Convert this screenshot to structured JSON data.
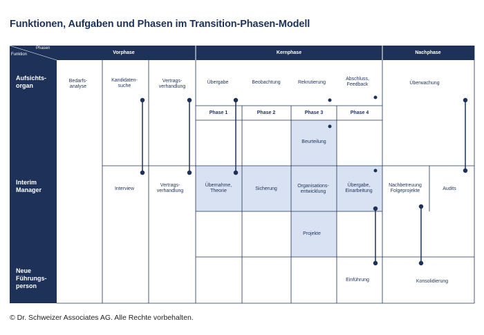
{
  "title": "Funktionen, Aufgaben und Phasen im Transition-Phasen-Modell",
  "footer": "© Dr. Schweizer Associates AG. Alle Rechte vorbehalten.",
  "corner": {
    "top": "Phasen",
    "bottom": "Funktion"
  },
  "phase_headers": {
    "vorphase": "Vorphase",
    "kernphase": "Kernphase",
    "nachphase": "Nachphase"
  },
  "sub_phases": {
    "p1": "Phase 1",
    "p2": "Phase 2",
    "p3": "Phase 3",
    "p4": "Phase 4"
  },
  "roles": {
    "aufsichtsorgan": "Aufsichts-\norgan",
    "interim_manager": "Interim\nManager",
    "neue_fuehrungsperson": "Neue\nFührungs-\nperson"
  },
  "tasks": {
    "bedarfsanalyse": "Bedarfs-\nanalyse",
    "kandidatensuche": "Kandidaten-\nsuche",
    "vertragsverhandlung_ao": "Vertrags-\nverhandlung",
    "uebergabe": "Übergabe",
    "beobachtung": "Beobachtung",
    "rekrutierung": "Rekrutierung",
    "abschluss_feedback": "Abschluss,\nFeedback",
    "ueberwachung": "Überwachung",
    "beurteilung": "Beurteilung",
    "interview": "Interview",
    "vertragsverhandlung_im": "Vertrags-\nverhandlung",
    "uebernahme_theorie": "Übernahme,\nTheorie",
    "sicherung": "Sicherung",
    "organisationsentwicklung": "Organisations-\nentwicklung",
    "uebergabe_einarbeitung": "Übergabe,\nEinarbeitung",
    "nachbetreuung": "Nachbetreuung\nFolgeprojekte",
    "audits": "Audits",
    "projekte": "Projekte",
    "einfuehrung": "Einführung",
    "konsolidierung": "Konsolidierung"
  },
  "colors": {
    "navy": "#1d3159",
    "highlight": "#d8e2f2",
    "grid": "#1d3159"
  }
}
